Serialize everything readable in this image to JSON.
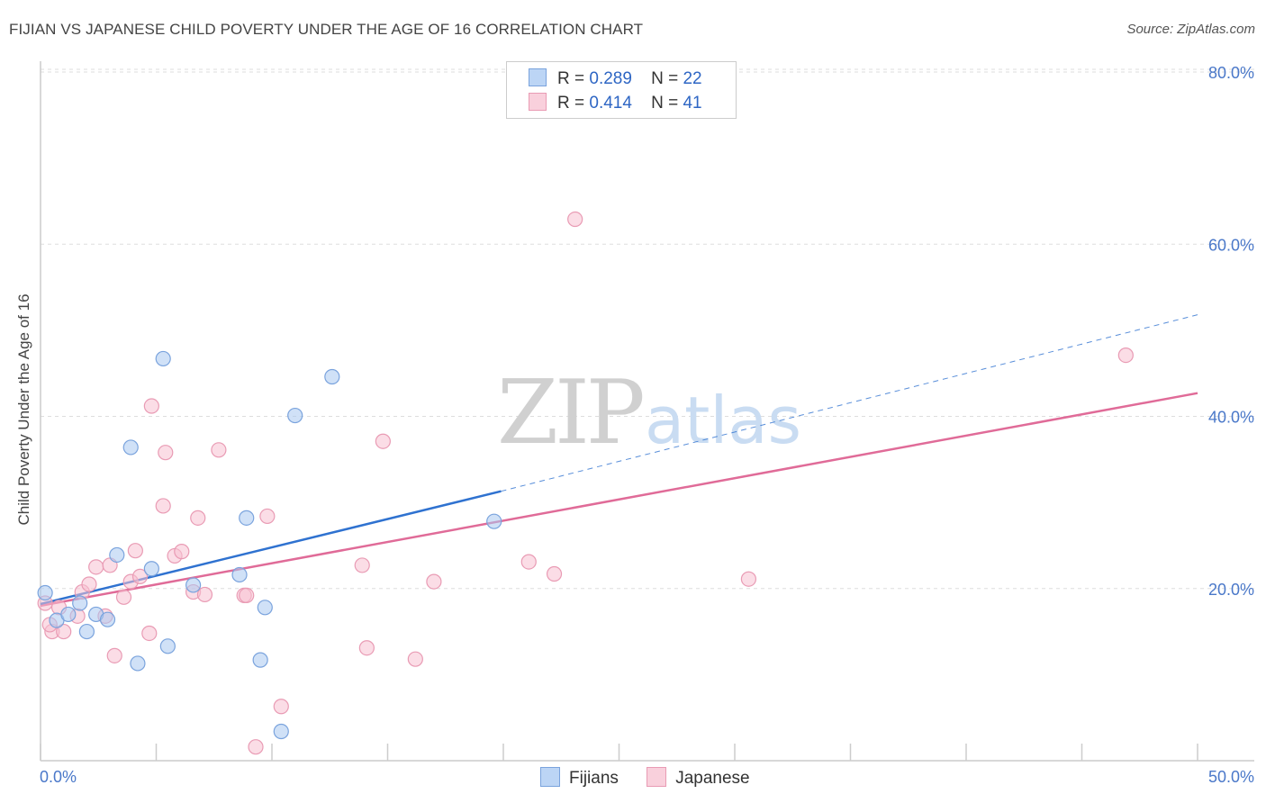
{
  "title": "FIJIAN VS JAPANESE CHILD POVERTY UNDER THE AGE OF 16 CORRELATION CHART",
  "source": "Source: ZipAtlas.com",
  "watermark": {
    "zip": "ZIP",
    "atlas": "atlas"
  },
  "legend": {
    "fijians": {
      "r_label": "R =",
      "r_value": "0.289",
      "n_label": "N =",
      "n_value": "22"
    },
    "japanese": {
      "r_label": "R =",
      "r_value": "0.414",
      "n_label": "N =",
      "n_value": "41"
    }
  },
  "bottom_legend": {
    "fijians": "Fijians",
    "japanese": "Japanese"
  },
  "colors": {
    "fijians_fill": "#a9c8f0",
    "fijians_stroke": "#7aa3dd",
    "fijians_line": "#2f72d0",
    "japanese_fill": "#f7c1d1",
    "japanese_stroke": "#e99bb4",
    "japanese_line": "#e06b98",
    "axis_text": "#4a78c9",
    "grid": "#dddddd"
  },
  "chart_data": {
    "type": "scatter",
    "title": "FIJIAN VS JAPANESE CHILD POVERTY UNDER THE AGE OF 16 CORRELATION CHART",
    "xlabel": "",
    "ylabel": "Child Poverty Under the Age of 16",
    "xlim": [
      0,
      50
    ],
    "ylim": [
      0,
      80
    ],
    "y_ticks": [
      20,
      40,
      60,
      80
    ],
    "y_tick_labels": [
      "20.0%",
      "40.0%",
      "60.0%",
      "80.0%"
    ],
    "x_tick_labels": [
      "0.0%",
      "50.0%"
    ],
    "series": [
      {
        "name": "Fijians",
        "points": [
          [
            0.2,
            19.5
          ],
          [
            0.7,
            16.3
          ],
          [
            1.2,
            17.0
          ],
          [
            1.7,
            18.3
          ],
          [
            2.0,
            15.0
          ],
          [
            2.4,
            17.0
          ],
          [
            2.9,
            16.4
          ],
          [
            3.3,
            23.9
          ],
          [
            3.9,
            36.4
          ],
          [
            4.2,
            11.3
          ],
          [
            4.8,
            22.3
          ],
          [
            5.3,
            46.7
          ],
          [
            5.5,
            13.3
          ],
          [
            6.6,
            20.4
          ],
          [
            8.6,
            21.6
          ],
          [
            8.9,
            28.2
          ],
          [
            9.5,
            11.7
          ],
          [
            9.7,
            17.8
          ],
          [
            10.4,
            3.4
          ],
          [
            11.0,
            40.1
          ],
          [
            12.6,
            44.6
          ],
          [
            19.6,
            27.8
          ]
        ],
        "trend": {
          "x0": 0,
          "y0": 18.2,
          "x1": 19.9,
          "y1": 31.3,
          "x_dash_end": 50,
          "y_dash_end": 51.8
        }
      },
      {
        "name": "Japanese",
        "points": [
          [
            0.2,
            18.3
          ],
          [
            0.5,
            15.0
          ],
          [
            0.8,
            17.8
          ],
          [
            1.0,
            15.0
          ],
          [
            1.6,
            16.8
          ],
          [
            1.8,
            19.6
          ],
          [
            2.1,
            20.5
          ],
          [
            2.4,
            22.5
          ],
          [
            2.8,
            16.8
          ],
          [
            3.0,
            22.7
          ],
          [
            3.2,
            12.2
          ],
          [
            3.6,
            19.0
          ],
          [
            3.9,
            20.8
          ],
          [
            4.1,
            24.4
          ],
          [
            4.3,
            21.4
          ],
          [
            4.7,
            14.8
          ],
          [
            4.8,
            41.2
          ],
          [
            5.3,
            29.6
          ],
          [
            5.4,
            35.8
          ],
          [
            5.8,
            23.8
          ],
          [
            6.1,
            24.3
          ],
          [
            6.6,
            19.6
          ],
          [
            6.8,
            28.2
          ],
          [
            7.1,
            19.3
          ],
          [
            7.7,
            36.1
          ],
          [
            8.8,
            19.2
          ],
          [
            9.3,
            1.6
          ],
          [
            9.8,
            28.4
          ],
          [
            10.4,
            6.3
          ],
          [
            13.9,
            22.7
          ],
          [
            14.1,
            13.1
          ],
          [
            14.8,
            37.1
          ],
          [
            16.2,
            11.8
          ],
          [
            17.0,
            20.8
          ],
          [
            21.1,
            23.1
          ],
          [
            22.2,
            21.7
          ],
          [
            23.1,
            62.9
          ],
          [
            30.6,
            21.1
          ],
          [
            46.9,
            47.1
          ],
          [
            0.4,
            15.8
          ],
          [
            8.9,
            19.2
          ]
        ],
        "trend": {
          "x0": 0,
          "y0": 18.0,
          "x1": 50,
          "y1": 42.7
        }
      }
    ]
  }
}
